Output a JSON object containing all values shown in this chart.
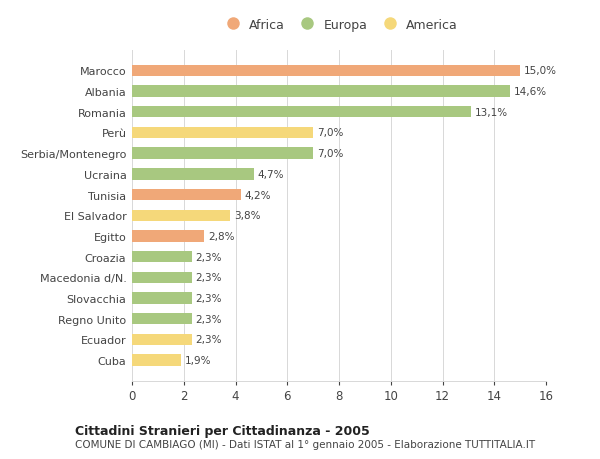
{
  "categories": [
    "Cuba",
    "Ecuador",
    "Regno Unito",
    "Slovacchia",
    "Macedonia d/N.",
    "Croazia",
    "Egitto",
    "El Salvador",
    "Tunisia",
    "Ucraina",
    "Serbia/Montenegro",
    "Perù",
    "Romania",
    "Albania",
    "Marocco"
  ],
  "values": [
    1.9,
    2.3,
    2.3,
    2.3,
    2.3,
    2.3,
    2.8,
    3.8,
    4.2,
    4.7,
    7.0,
    7.0,
    13.1,
    14.6,
    15.0
  ],
  "colors": [
    "#f5d87a",
    "#f5d87a",
    "#a8c880",
    "#a8c880",
    "#a8c880",
    "#a8c880",
    "#f0a878",
    "#f5d87a",
    "#f0a878",
    "#a8c880",
    "#a8c880",
    "#f5d87a",
    "#a8c880",
    "#a8c880",
    "#f0a878"
  ],
  "labels": [
    "1,9%",
    "2,3%",
    "2,3%",
    "2,3%",
    "2,3%",
    "2,3%",
    "2,8%",
    "3,8%",
    "4,2%",
    "4,7%",
    "7,0%",
    "7,0%",
    "13,1%",
    "14,6%",
    "15,0%"
  ],
  "xlim": [
    0,
    16
  ],
  "xticks": [
    0,
    2,
    4,
    6,
    8,
    10,
    12,
    14,
    16
  ],
  "title": "Cittadini Stranieri per Cittadinanza - 2005",
  "subtitle": "COMUNE DI CAMBIAGO (MI) - Dati ISTAT al 1° gennaio 2005 - Elaborazione TUTTITALIA.IT",
  "legend_labels": [
    "Africa",
    "Europa",
    "America"
  ],
  "legend_colors": [
    "#f0a878",
    "#a8c880",
    "#f5d87a"
  ],
  "background_color": "#ffffff",
  "grid_color": "#d8d8d8",
  "bar_height": 0.55
}
